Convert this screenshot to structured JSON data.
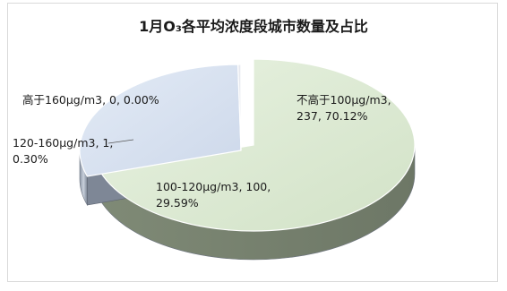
{
  "chart_data": {
    "type": "pie",
    "title": "1月O₃各平均浓度段城市数量及占比",
    "slices": [
      {
        "name": "不高于100μg/m3",
        "value": 237,
        "percent": "70.12%",
        "color": "#dfecd6",
        "label_lines": [
          "不高于100μg/m3,",
          "237, 70.12%"
        ]
      },
      {
        "name": "100-120μg/m3",
        "value": 100,
        "percent": "29.59%",
        "color": "#d9e3f1",
        "label_lines": [
          "100-120μg/m3, 100,",
          "29.59%"
        ]
      },
      {
        "name": "120-160μg/m3",
        "value": 1,
        "percent": "0.30%",
        "color": "#e7e9ef",
        "label_lines": [
          "120-160μg/m3, 1,",
          "0.30%"
        ]
      },
      {
        "name": "高于160μg/m3",
        "value": 0,
        "percent": "0.00%",
        "color": "#f2f2f2",
        "label_lines": [
          "高于160μg/m3, 0, 0.00%"
        ]
      }
    ],
    "legend": "none"
  }
}
